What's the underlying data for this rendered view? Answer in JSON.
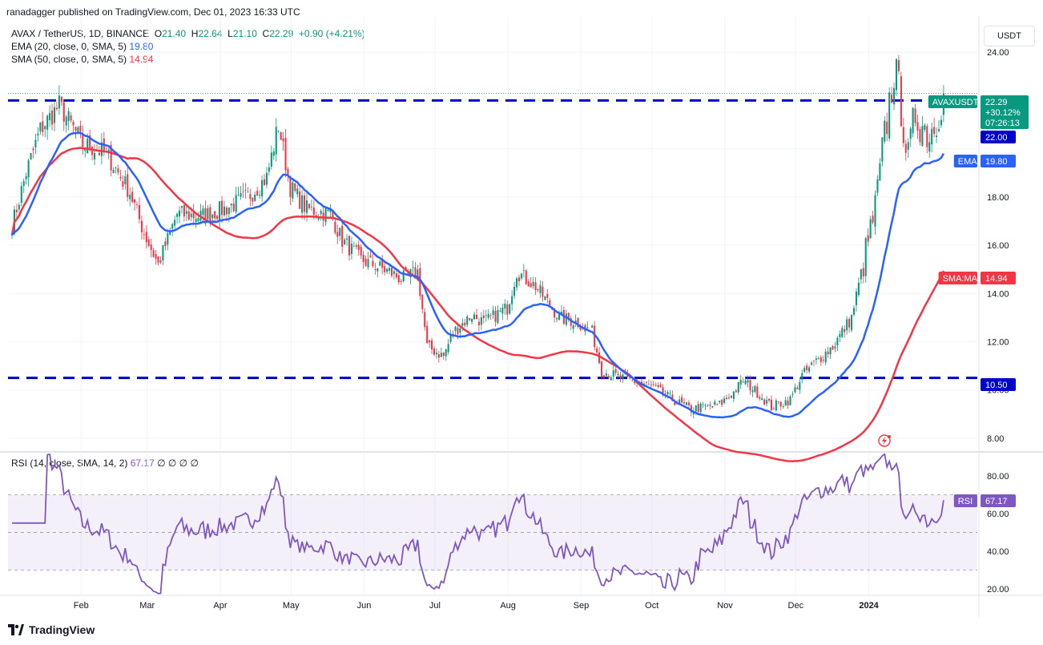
{
  "header": {
    "publisher_line": "ranadagger published on TradingView.com, Dec 01, 2023 16:33 UTC"
  },
  "legend": {
    "symbol": "AVAX / TetherUS, 1D, BINANCE",
    "o_label": "O",
    "o": "21.40",
    "h_label": "H",
    "h": "22.64",
    "l_label": "L",
    "l": "21.10",
    "c_label": "C",
    "c": "22.29",
    "change": "+0.90 (+4.21%)",
    "ema_label": "EMA (20, close, 0, SMA, 5)",
    "ema_value": "19.80",
    "sma_label": "SMA (50, close, 0, SMA, 5)",
    "sma_value": "14.94"
  },
  "rsi_legend": {
    "label": "RSI (14, close, SMA, 14, 2)",
    "value": "67.17",
    "extras": "∅ ∅ ∅ ∅"
  },
  "currency_button": "USDT",
  "footer": {
    "brand": "TradingView"
  },
  "colors": {
    "up": "#089981",
    "down": "#f23645",
    "ema": "#2962ff",
    "sma": "#f23645",
    "rsi": "#7e57c2",
    "level": "#0000cc"
  },
  "chart_data": [
    {
      "type": "candlestick",
      "title": "AVAX / TetherUS, 1D, BINANCE",
      "ylim": [
        7.5,
        25.5
      ],
      "y_ticks": [
        8,
        10,
        12,
        14,
        16,
        18,
        20,
        22,
        24
      ],
      "y_tick_labels": [
        "8.00",
        "10.00",
        "12.00",
        "14.00",
        "16.00",
        "18.00",
        "",
        "",
        "24.00"
      ],
      "x_tick_labels": [
        "Feb",
        "Mar",
        "Apr",
        "May",
        "Jun",
        "Jul",
        "Aug",
        "Sep",
        "Oct",
        "Nov",
        "Dec",
        "2024"
      ],
      "horizontal_levels": [
        22.0,
        10.5
      ],
      "price_anchors": [
        [
          0,
          16.8
        ],
        [
          6,
          19.0
        ],
        [
          12,
          20.8
        ],
        [
          20,
          21.8
        ],
        [
          30,
          20.2
        ],
        [
          40,
          19.8
        ],
        [
          50,
          18.2
        ],
        [
          56,
          16.5
        ],
        [
          62,
          15.2
        ],
        [
          70,
          17.3
        ],
        [
          80,
          17.2
        ],
        [
          90,
          17.5
        ],
        [
          100,
          18.0
        ],
        [
          108,
          18.8
        ],
        [
          113,
          21.0
        ],
        [
          118,
          18.4
        ],
        [
          125,
          17.5
        ],
        [
          135,
          17.3
        ],
        [
          140,
          16.2
        ],
        [
          148,
          15.4
        ],
        [
          160,
          14.9
        ],
        [
          165,
          14.6
        ],
        [
          172,
          14.9
        ],
        [
          176,
          11.8
        ],
        [
          183,
          11.4
        ],
        [
          187,
          12.4
        ],
        [
          195,
          13.1
        ],
        [
          200,
          12.8
        ],
        [
          210,
          13.4
        ],
        [
          214,
          14.9
        ],
        [
          222,
          14.3
        ],
        [
          232,
          13.0
        ],
        [
          240,
          12.8
        ],
        [
          246,
          12.4
        ],
        [
          250,
          10.8
        ],
        [
          258,
          10.5
        ],
        [
          266,
          10.3
        ],
        [
          272,
          10.1
        ],
        [
          280,
          9.6
        ],
        [
          288,
          9.2
        ],
        [
          300,
          9.4
        ],
        [
          306,
          9.9
        ],
        [
          310,
          10.4
        ],
        [
          316,
          9.9
        ],
        [
          322,
          9.3
        ],
        [
          330,
          9.6
        ],
        [
          335,
          10.6
        ],
        [
          340,
          11.1
        ],
        [
          348,
          11.8
        ],
        [
          356,
          13.0
        ],
        [
          360,
          14.8
        ],
        [
          366,
          17.5
        ],
        [
          370,
          20.5
        ],
        [
          374,
          23.3
        ],
        [
          377,
          21.8
        ],
        [
          380,
          19.5
        ],
        [
          383,
          21.5
        ],
        [
          386,
          21.0
        ],
        [
          389,
          20.6
        ],
        [
          392,
          21.4
        ],
        [
          395,
          22.3
        ]
      ],
      "current_price": "22.29",
      "current_change": "+30.12%",
      "countdown": "07:26:13",
      "price_tags": [
        {
          "label": "AVAXUSDT",
          "value": "22.29"
        },
        {
          "label": "",
          "value": "22.00"
        },
        {
          "label": "EMA",
          "value": "19.80"
        },
        {
          "label": "SMA:MA",
          "value": "14.94"
        },
        {
          "label": "",
          "value": "10.50"
        }
      ],
      "series": [
        {
          "name": "EMA (20, close, 0, SMA, 5)",
          "last": 19.8
        },
        {
          "name": "SMA (50, close, 0, SMA, 5)",
          "last": 14.94
        }
      ]
    },
    {
      "type": "line",
      "title": "RSI (14, close, SMA, 14, 2)",
      "ylim": [
        17,
        92
      ],
      "y_ticks": [
        20,
        40,
        60,
        80
      ],
      "y_tick_labels": [
        "20.00",
        "40.00",
        "60.00",
        "80.00"
      ],
      "bands": [
        30,
        50,
        70
      ],
      "last": "67.17",
      "tag_label": "RSI"
    }
  ]
}
